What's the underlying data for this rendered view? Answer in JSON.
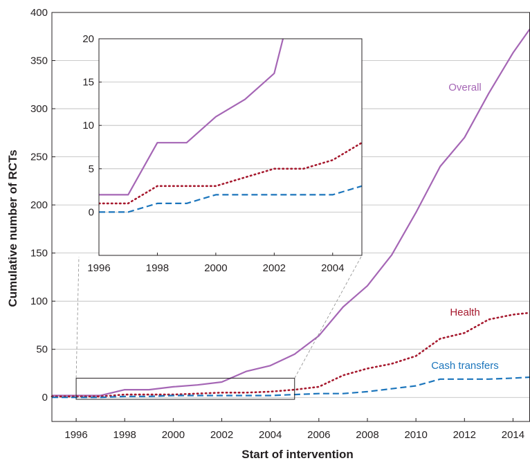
{
  "chart_data": [
    {
      "type": "line",
      "xlabel": "Start of intervention",
      "ylabel": "Cumulative number of RCTs",
      "xlim": [
        1995,
        2014.7
      ],
      "ylim": [
        -25,
        400
      ],
      "x_ticks": [
        1996,
        1998,
        2000,
        2002,
        2004,
        2006,
        2008,
        2010,
        2012,
        2014
      ],
      "y_ticks": [
        0,
        50,
        100,
        150,
        200,
        250,
        300,
        350,
        400
      ],
      "grid": "horizontal",
      "series": [
        {
          "name": "Overall",
          "color": "#a566b5",
          "style": "solid",
          "x": [
            1995,
            1996,
            1997,
            1998,
            1999,
            2000,
            2001,
            2002,
            2003,
            2004,
            2005,
            2006,
            2007,
            2008,
            2009,
            2010,
            2011,
            2012,
            2013,
            2014,
            2014.7
          ],
          "y": [
            2,
            2,
            2,
            8,
            8,
            11,
            13,
            16,
            27,
            33,
            45,
            64,
            94,
            116,
            148,
            192,
            240,
            270,
            316,
            358,
            383
          ]
        },
        {
          "name": "Health",
          "color": "#a6192e",
          "style": "dotted",
          "x": [
            1995,
            1996,
            1997,
            1998,
            1999,
            2000,
            2001,
            2002,
            2003,
            2004,
            2005,
            2006,
            2007,
            2008,
            2009,
            2010,
            2011,
            2012,
            2013,
            2014,
            2014.7
          ],
          "y": [
            1,
            1,
            1,
            3,
            3,
            3,
            4,
            5,
            5,
            6,
            8,
            11,
            23,
            30,
            35,
            43,
            61,
            67,
            81,
            86,
            88
          ]
        },
        {
          "name": "Cash transfers",
          "color": "#1b75bc",
          "style": "dashed",
          "x": [
            1995,
            1996,
            1997,
            1998,
            1999,
            2000,
            2001,
            2002,
            2003,
            2004,
            2005,
            2006,
            2007,
            2008,
            2009,
            2010,
            2011,
            2012,
            2013,
            2014,
            2014.7
          ],
          "y": [
            0,
            0,
            0,
            1,
            1,
            2,
            2,
            2,
            2,
            2,
            3,
            4,
            4,
            6,
            9,
            12,
            19,
            19,
            19,
            20,
            21
          ]
        }
      ],
      "zoom_box": {
        "x": [
          1996,
          2005
        ],
        "y": [
          -2,
          20
        ]
      }
    },
    {
      "type": "line",
      "role": "inset",
      "xlim": [
        1996,
        2005
      ],
      "ylim": [
        -5,
        20
      ],
      "x_ticks": [
        1996,
        1998,
        2000,
        2002,
        2004
      ],
      "y_ticks": [
        0,
        5,
        10,
        15,
        20
      ],
      "grid": "horizontal",
      "series": [
        {
          "name": "Overall",
          "color": "#a566b5",
          "style": "solid",
          "x": [
            1996,
            1997,
            1998,
            1999,
            2000,
            2001,
            2002,
            2002.3
          ],
          "y": [
            2,
            2,
            8,
            8,
            11,
            13,
            16,
            20
          ]
        },
        {
          "name": "Health",
          "color": "#a6192e",
          "style": "dotted",
          "x": [
            1996,
            1997,
            1998,
            1999,
            2000,
            2001,
            2002,
            2003,
            2004,
            2005
          ],
          "y": [
            1,
            1,
            3,
            3,
            3,
            4,
            5,
            5,
            6,
            8
          ]
        },
        {
          "name": "Cash transfers",
          "color": "#1b75bc",
          "style": "dashed",
          "x": [
            1996,
            1997,
            1998,
            1999,
            2000,
            2001,
            2002,
            2003,
            2004,
            2005
          ],
          "y": [
            0,
            0,
            1,
            1,
            2,
            2,
            2,
            2,
            2,
            3
          ]
        }
      ]
    }
  ]
}
